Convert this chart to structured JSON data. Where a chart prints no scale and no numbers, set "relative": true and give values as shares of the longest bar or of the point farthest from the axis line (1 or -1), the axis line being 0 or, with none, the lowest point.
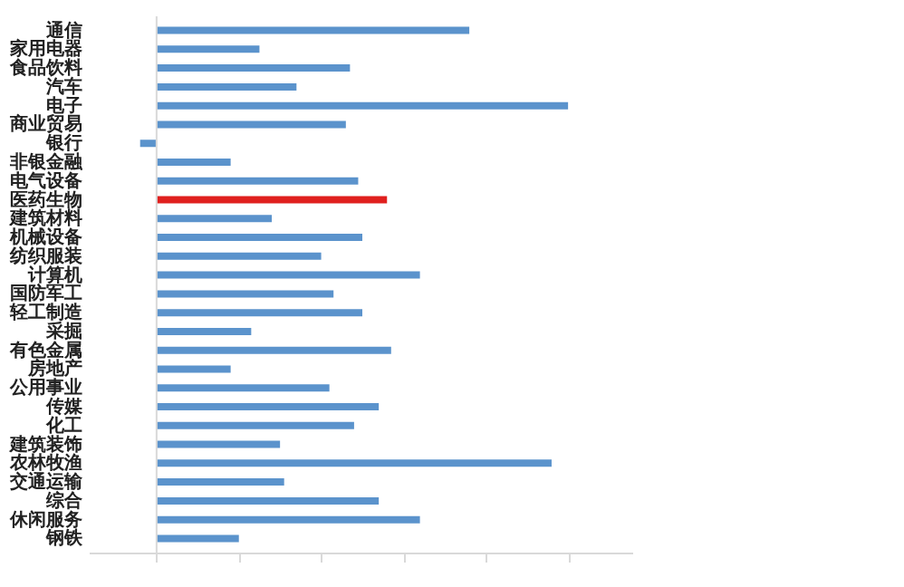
{
  "chart_data": {
    "type": "bar",
    "orientation": "horizontal",
    "relative": true,
    "categories": [
      "通信",
      "家用电器",
      "食品饮料",
      "汽车",
      "电子",
      "商业贸易",
      "银行",
      "非银金融",
      "电气设备",
      "医药生物",
      "建筑材料",
      "机械设备",
      "纺织服装",
      "计算机",
      "国防军工",
      "轻工制造",
      "采掘",
      "有色金属",
      "房地产",
      "公用事业",
      "传媒",
      "化工",
      "建筑装饰",
      "农林牧渔",
      "交通运输",
      "综合",
      "休闲服务",
      "钢铁"
    ],
    "values": [
      0.76,
      0.25,
      0.47,
      0.34,
      1,
      0.46,
      -0.04,
      0.18,
      0.49,
      0.56,
      0.28,
      0.5,
      0.4,
      0.64,
      0.43,
      0.5,
      0.23,
      0.57,
      0.18,
      0.42,
      0.54,
      0.48,
      0.3,
      0.96,
      0.31,
      0.54,
      0.64,
      0.2
    ],
    "colors": [
      "#5b93cc",
      "#5b93cc",
      "#5b93cc",
      "#5b93cc",
      "#5b93cc",
      "#5b93cc",
      "#5b93cc",
      "#5b93cc",
      "#5b93cc",
      "#e0201e",
      "#5b93cc",
      "#5b93cc",
      "#5b93cc",
      "#5b93cc",
      "#5b93cc",
      "#5b93cc",
      "#5b93cc",
      "#5b93cc",
      "#5b93cc",
      "#5b93cc",
      "#5b93cc",
      "#5b93cc",
      "#5b93cc",
      "#5b93cc",
      "#5b93cc",
      "#5b93cc",
      "#5b93cc",
      "#5b93cc"
    ]
  }
}
